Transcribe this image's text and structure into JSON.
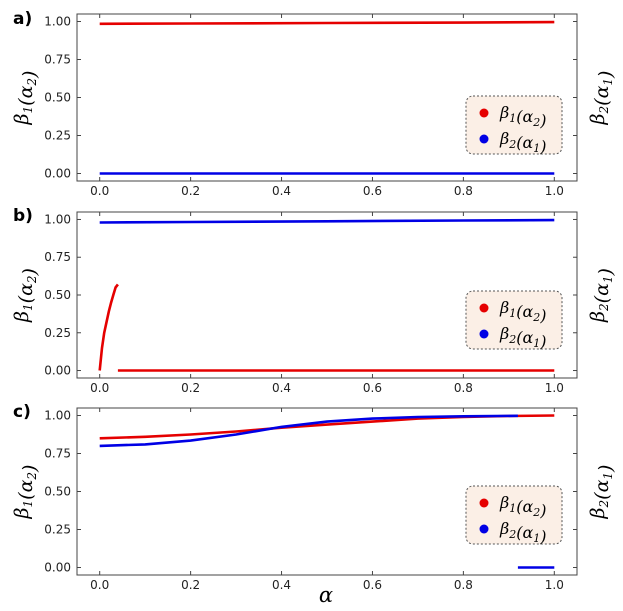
{
  "x_axis_label": "α",
  "chart_data": [
    {
      "type": "line",
      "panel_label": "a)",
      "ylabel_left": "β1(α2)",
      "ylabel_right": "β2(α1)",
      "xlim": [
        0,
        1
      ],
      "ylim": [
        0,
        1
      ],
      "x_ticks": [
        "0.0",
        "0.2",
        "0.4",
        "0.6",
        "0.8",
        "1.0"
      ],
      "y_ticks": [
        "0.00",
        "0.25",
        "0.50",
        "0.75",
        "1.00"
      ],
      "legend": {
        "position": "right",
        "entries": [
          "β1(α2)",
          "β2(α1)"
        ]
      },
      "series": [
        {
          "name": "β1(α2)",
          "color": "#e50000",
          "segments": [
            [
              [
                0,
                0.985
              ],
              [
                0.2,
                0.987
              ],
              [
                0.5,
                0.99
              ],
              [
                0.8,
                0.993
              ],
              [
                1.0,
                0.996
              ]
            ]
          ]
        },
        {
          "name": "β2(α1)",
          "color": "#0000e5",
          "segments": [
            [
              [
                0,
                0.0
              ],
              [
                1.0,
                0.0
              ]
            ]
          ]
        }
      ]
    },
    {
      "type": "line",
      "panel_label": "b)",
      "ylabel_left": "β1(α2)",
      "ylabel_right": "β2(α1)",
      "xlim": [
        0,
        1
      ],
      "ylim": [
        0,
        1
      ],
      "x_ticks": [
        "0.0",
        "0.2",
        "0.4",
        "0.6",
        "0.8",
        "1.0"
      ],
      "y_ticks": [
        "0.00",
        "0.25",
        "0.50",
        "0.75",
        "1.00"
      ],
      "legend": {
        "position": "right",
        "entries": [
          "β1(α2)",
          "β2(α1)"
        ]
      },
      "series": [
        {
          "name": "β1(α2)",
          "color": "#e50000",
          "segments": [
            [
              [
                0.0,
                0.0
              ],
              [
                0.005,
                0.15
              ],
              [
                0.01,
                0.25
              ],
              [
                0.015,
                0.32
              ],
              [
                0.02,
                0.39
              ],
              [
                0.025,
                0.45
              ],
              [
                0.03,
                0.5
              ],
              [
                0.035,
                0.55
              ],
              [
                0.04,
                0.57
              ]
            ],
            [
              [
                0.04,
                0.0
              ],
              [
                1.0,
                0.0
              ]
            ]
          ]
        },
        {
          "name": "β2(α1)",
          "color": "#0000e5",
          "segments": [
            [
              [
                0,
                0.98
              ],
              [
                0.2,
                0.983
              ],
              [
                0.5,
                0.988
              ],
              [
                0.8,
                0.993
              ],
              [
                1.0,
                0.996
              ]
            ]
          ]
        }
      ]
    },
    {
      "type": "line",
      "panel_label": "c)",
      "ylabel_left": "β1(α2)",
      "ylabel_right": "β2(α1)",
      "xlim": [
        0,
        1
      ],
      "ylim": [
        0,
        1
      ],
      "x_ticks": [
        "0.0",
        "0.2",
        "0.4",
        "0.6",
        "0.8",
        "1.0"
      ],
      "y_ticks": [
        "0.00",
        "0.25",
        "0.50",
        "0.75",
        "1.00"
      ],
      "legend": {
        "position": "right",
        "entries": [
          "β1(α2)",
          "β2(α1)"
        ]
      },
      "series": [
        {
          "name": "β1(α2)",
          "color": "#e50000",
          "segments": [
            [
              [
                0.0,
                0.85
              ],
              [
                0.1,
                0.86
              ],
              [
                0.2,
                0.875
              ],
              [
                0.3,
                0.895
              ],
              [
                0.4,
                0.92
              ],
              [
                0.5,
                0.94
              ],
              [
                0.6,
                0.96
              ],
              [
                0.7,
                0.98
              ],
              [
                0.8,
                0.99
              ],
              [
                0.9,
                0.997
              ],
              [
                1.0,
                1.0
              ]
            ]
          ]
        },
        {
          "name": "β2(α1)",
          "color": "#0000e5",
          "segments": [
            [
              [
                0.0,
                0.8
              ],
              [
                0.1,
                0.81
              ],
              [
                0.2,
                0.835
              ],
              [
                0.3,
                0.875
              ],
              [
                0.4,
                0.925
              ],
              [
                0.5,
                0.96
              ],
              [
                0.6,
                0.98
              ],
              [
                0.7,
                0.99
              ],
              [
                0.8,
                0.995
              ],
              [
                0.92,
                0.998
              ]
            ],
            [
              [
                0.92,
                0.0
              ],
              [
                1.0,
                0.0
              ]
            ]
          ]
        }
      ]
    }
  ]
}
